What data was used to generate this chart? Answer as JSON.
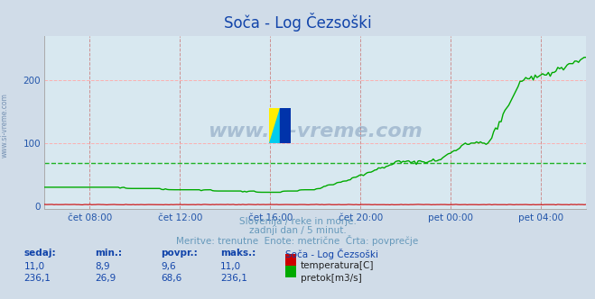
{
  "title": "Soča - Log Čezsoški",
  "background_color": "#d0dce8",
  "plot_bg_color": "#d8e8f0",
  "grid_color_v": "#cc8888",
  "grid_color_h": "#ffaaaa",
  "avg_line_color": "#00aa00",
  "avg_line_value": 68.6,
  "tick_color": "#2255aa",
  "tick_labels": [
    "čet 08:00",
    "čet 12:00",
    "čet 16:00",
    "čet 20:00",
    "pet 00:00",
    "pet 04:00"
  ],
  "yticks": [
    0,
    100,
    200
  ],
  "ylim": [
    -5,
    270
  ],
  "footer_line1": "Slovenija / reke in morje.",
  "footer_line2": "zadnji dan / 5 minut.",
  "footer_line3": "Meritve: trenutne  Enote: metrične  Črta: povprečje",
  "footer_color": "#6699bb",
  "table_header": [
    "sedaj:",
    "min.:",
    "povpr.:",
    "maks.:",
    "Soča - Log Čezsoški"
  ],
  "table_row1": [
    "11,0",
    "8,9",
    "9,6",
    "11,0",
    "temperatura[C]"
  ],
  "table_row2": [
    "236,1",
    "26,9",
    "68,6",
    "236,1",
    "pretok[m3/s]"
  ],
  "temp_color": "#cc0000",
  "flow_color": "#00aa00",
  "watermark": "www.si-vreme.com",
  "watermark_color": "#3a6090",
  "watermark_alpha": 0.3,
  "left_label": "www.si-vreme.com",
  "left_label_color": "#3a6090",
  "title_color": "#1144aa",
  "table_header_color": "#1144aa",
  "table_data_color": "#1144aa"
}
